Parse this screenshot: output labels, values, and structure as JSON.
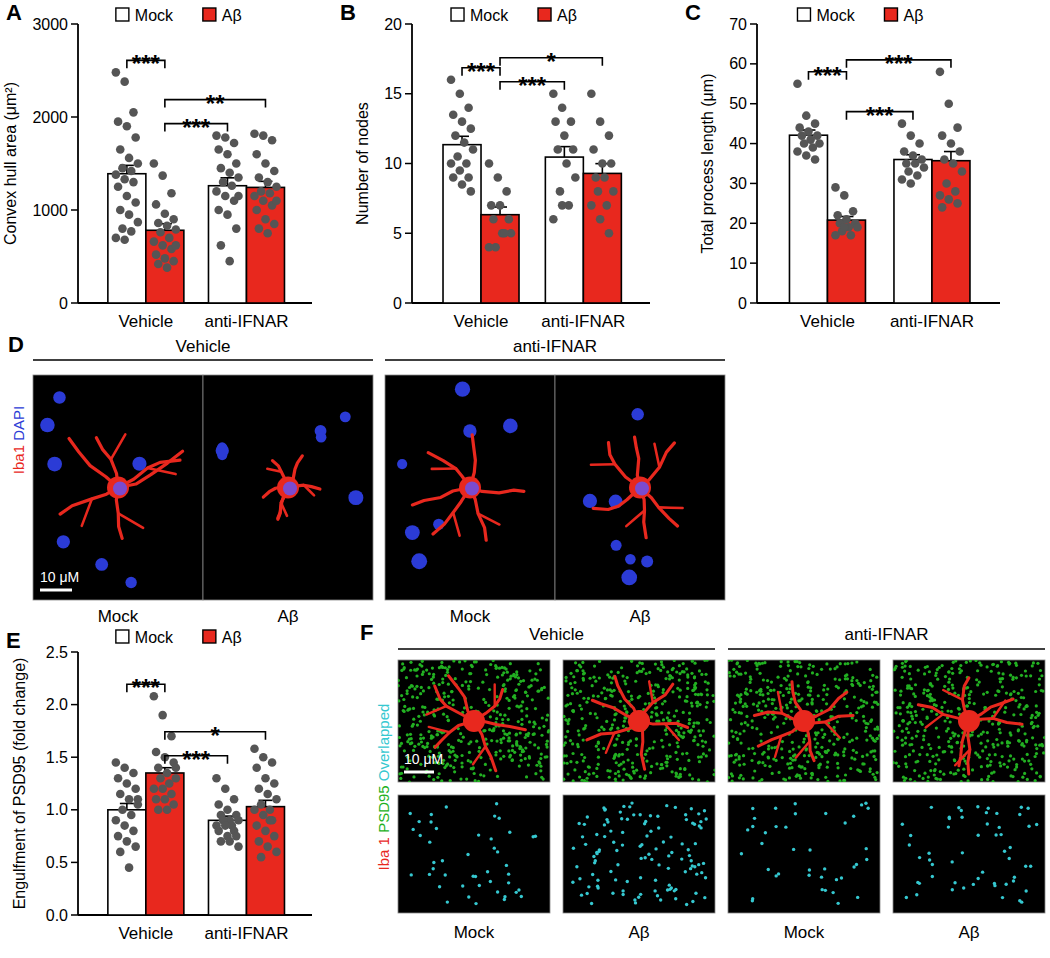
{
  "chart_data": [
    {
      "type": "bar",
      "panel": "A",
      "y_label": "Convex hull area (μm²)",
      "categories": [
        "Vehicle",
        "anti-IFNAR"
      ],
      "series": [
        {
          "name": "Mock",
          "color": "#ffffff",
          "values": [
            1390,
            1261
          ],
          "errors": [
            90,
            85
          ],
          "points": [
            [
              2480,
              2380,
              2050,
              1950,
              1900,
              1780,
              1650,
              1560,
              1500,
              1450,
              1420,
              1380,
              1330,
              1300,
              1250,
              1150,
              1080,
              1000,
              950,
              870,
              800,
              770,
              700,
              680
            ],
            [
              1800,
              1780,
              1720,
              1650,
              1600,
              1500,
              1450,
              1400,
              1350,
              1300,
              1260,
              1200,
              1150,
              1100,
              1000,
              950,
              800,
              620,
              450,
              1150
            ]
          ]
        },
        {
          "name": "Aβ",
          "color": "#e8281e",
          "values": [
            782,
            1243
          ],
          "errors": [
            70,
            65
          ],
          "points": [
            [
              1500,
              1370,
              1180,
              1060,
              960,
              900,
              860,
              830,
              790,
              760,
              700,
              660,
              620,
              580,
              520,
              480,
              450,
              420,
              380,
              620
            ],
            [
              1820,
              1800,
              1750,
              1600,
              1500,
              1420,
              1350,
              1300,
              1250,
              1200,
              1180,
              1150,
              1100,
              1050,
              1000,
              900,
              850,
              800,
              750,
              1100
            ]
          ]
        }
      ],
      "ylim": [
        0,
        3000
      ],
      "yticks": [
        0,
        1000,
        2000,
        3000
      ],
      "grid": false,
      "legend": "top",
      "annotations": [
        {
          "text": "***",
          "start": {
            "category": 0,
            "series": 0
          },
          "end": {
            "category": 0,
            "series": 1
          }
        },
        {
          "text": "***",
          "start": {
            "category": 0,
            "series": 1
          },
          "end": {
            "category": 1,
            "series": 0
          }
        },
        {
          "text": "**",
          "start": {
            "category": 0,
            "series": 1
          },
          "end": {
            "category": 1,
            "series": 1
          }
        }
      ]
    },
    {
      "type": "bar",
      "panel": "B",
      "y_label": "Number of nodes",
      "categories": [
        "Vehicle",
        "anti-IFNAR"
      ],
      "series": [
        {
          "name": "Mock",
          "color": "#ffffff",
          "values": [
            11.35,
            10.46
          ],
          "errors": [
            0.6,
            0.75
          ],
          "points": [
            [
              16,
              15,
              14,
              13.5,
              13,
              12.5,
              12,
              11.5,
              11,
              10.5,
              10,
              10,
              9.5,
              9,
              9,
              8.5,
              8
            ],
            [
              15,
              14,
              13,
              13,
              12,
              11,
              11,
              10,
              9,
              8,
              7,
              6,
              7
            ]
          ]
        },
        {
          "name": "Aβ",
          "color": "#e8281e",
          "values": [
            6.33,
            9.29
          ],
          "errors": [
            0.55,
            0.7
          ],
          "points": [
            [
              10,
              9,
              8,
              7,
              7,
              6,
              6,
              5,
              5,
              4,
              5,
              4
            ],
            [
              15,
              13,
              12,
              11,
              10,
              10,
              9,
              9,
              8,
              8,
              7,
              7,
              6,
              5
            ]
          ]
        }
      ],
      "ylim": [
        0,
        20
      ],
      "yticks": [
        0,
        5,
        10,
        15,
        20
      ],
      "grid": false,
      "legend": "top",
      "annotations": [
        {
          "text": "***",
          "start": {
            "category": 0,
            "series": 0
          },
          "end": {
            "category": 0,
            "series": 1
          }
        },
        {
          "text": "***",
          "start": {
            "category": 0,
            "series": 1
          },
          "end": {
            "category": 1,
            "series": 0
          }
        },
        {
          "text": "*",
          "start": {
            "category": 0,
            "series": 1
          },
          "end": {
            "category": 1,
            "series": 1
          }
        }
      ]
    },
    {
      "type": "bar",
      "panel": "C",
      "y_label": "Total process length (μm)",
      "categories": [
        "Vehicle",
        "anti-IFNAR"
      ],
      "series": [
        {
          "name": "Mock",
          "color": "#ffffff",
          "values": [
            42.1,
            36.0
          ],
          "errors": [
            1.3,
            1.2
          ],
          "points": [
            [
              55,
              47,
              45,
              44,
              43,
              42,
              42,
              41,
              40,
              40,
              39,
              38,
              37,
              36
            ],
            [
              45,
              42,
              40,
              38,
              37,
              36,
              35,
              35,
              34,
              33,
              32,
              31,
              30
            ]
          ]
        },
        {
          "name": "Aβ",
          "color": "#e8281e",
          "values": [
            20.8,
            35.7
          ],
          "errors": [
            0.9,
            2.3
          ],
          "points": [
            [
              29,
              27,
              23,
              22,
              21,
              20,
              20,
              19,
              19,
              18,
              17,
              17,
              19
            ],
            [
              58,
              50,
              44,
              42,
              40,
              38,
              36,
              35,
              33,
              30,
              28,
              27,
              26,
              25,
              24
            ]
          ]
        }
      ],
      "ylim": [
        0,
        70
      ],
      "yticks": [
        0,
        10,
        20,
        30,
        40,
        50,
        60,
        70
      ],
      "grid": false,
      "legend": "top",
      "annotations": [
        {
          "text": "***",
          "start": {
            "category": 0,
            "series": 0
          },
          "end": {
            "category": 0,
            "series": 1
          }
        },
        {
          "text": "***",
          "start": {
            "category": 0,
            "series": 1
          },
          "end": {
            "category": 1,
            "series": 0
          }
        },
        {
          "text": "***",
          "start": {
            "category": 0,
            "series": 1
          },
          "end": {
            "category": 1,
            "series": 1
          }
        }
      ]
    },
    {
      "type": "bar",
      "panel": "E",
      "y_label": "Engulfment of PSD95 (fold change)",
      "categories": [
        "Vehicle",
        "anti-IFNAR"
      ],
      "series": [
        {
          "name": "Mock",
          "color": "#ffffff",
          "values": [
            1.0,
            0.9
          ],
          "errors": [
            0.06,
            0.04
          ],
          "points": [
            [
              1.45,
              1.4,
              1.35,
              1.3,
              1.25,
              1.2,
              1.15,
              1.1,
              1.05,
              1.0,
              0.95,
              0.9,
              0.85,
              0.8,
              0.75,
              0.7,
              0.65,
              0.6,
              0.45,
              1.1
            ],
            [
              1.3,
              1.2,
              1.1,
              1.05,
              1.0,
              0.95,
              0.95,
              0.9,
              0.9,
              0.9,
              0.85,
              0.85,
              0.85,
              0.8,
              0.8,
              0.75,
              0.75,
              0.7,
              0.7,
              0.65
            ]
          ]
        },
        {
          "name": "Aβ",
          "color": "#e8281e",
          "values": [
            1.35,
            1.03
          ],
          "errors": [
            0.05,
            0.06
          ],
          "points": [
            [
              2.08,
              1.9,
              1.7,
              1.55,
              1.5,
              1.45,
              1.4,
              1.35,
              1.3,
              1.3,
              1.25,
              1.2,
              1.2,
              1.15,
              1.1,
              1.1,
              1.05,
              1.0,
              1.0,
              1.4
            ],
            [
              1.58,
              1.5,
              1.45,
              1.4,
              1.3,
              1.25,
              1.2,
              1.15,
              1.1,
              1.05,
              1.0,
              1.0,
              0.95,
              0.9,
              0.85,
              0.8,
              0.75,
              0.7,
              0.65,
              0.6,
              0.55,
              0.9
            ]
          ]
        }
      ],
      "ylim": [
        0,
        2.5
      ],
      "yticks": [
        {
          "value": 0,
          "label": "0.0"
        },
        0.5,
        {
          "value": 1,
          "label": "1.0"
        },
        1.5,
        {
          "value": 2,
          "label": "2.0"
        },
        2.5
      ],
      "grid": false,
      "legend": "top",
      "annotations": [
        {
          "text": "***",
          "start": {
            "category": 0,
            "series": 0
          },
          "end": {
            "category": 0,
            "series": 1
          }
        },
        {
          "text": "***",
          "start": {
            "category": 0,
            "series": 1
          },
          "end": {
            "category": 1,
            "series": 0
          }
        },
        {
          "text": "*",
          "start": {
            "category": 0,
            "series": 1
          },
          "end": {
            "category": 1,
            "series": 1
          }
        }
      ]
    }
  ],
  "panels": {
    "D": {
      "letter": "D",
      "groups": [
        "Vehicle",
        "anti-IFNAR"
      ],
      "conditions": [
        "Mock",
        "Aβ"
      ],
      "stains": [
        {
          "text": "Iba1",
          "color": "#e8281e"
        },
        {
          "text": "DAPI",
          "color": "#2b3bd6"
        }
      ],
      "scale_bar": "10 μM"
    },
    "F": {
      "letter": "F",
      "groups": [
        "Vehicle",
        "anti-IFNAR"
      ],
      "conditions": [
        "Mock",
        "Aβ"
      ],
      "stains": [
        {
          "text": "Iba 1",
          "color": "#e8281e"
        },
        {
          "text": "PSD95",
          "color": "#22b022"
        },
        {
          "text": "Overlapped",
          "color": "#35c8d0"
        }
      ],
      "scale_bar": "10 μM"
    }
  }
}
